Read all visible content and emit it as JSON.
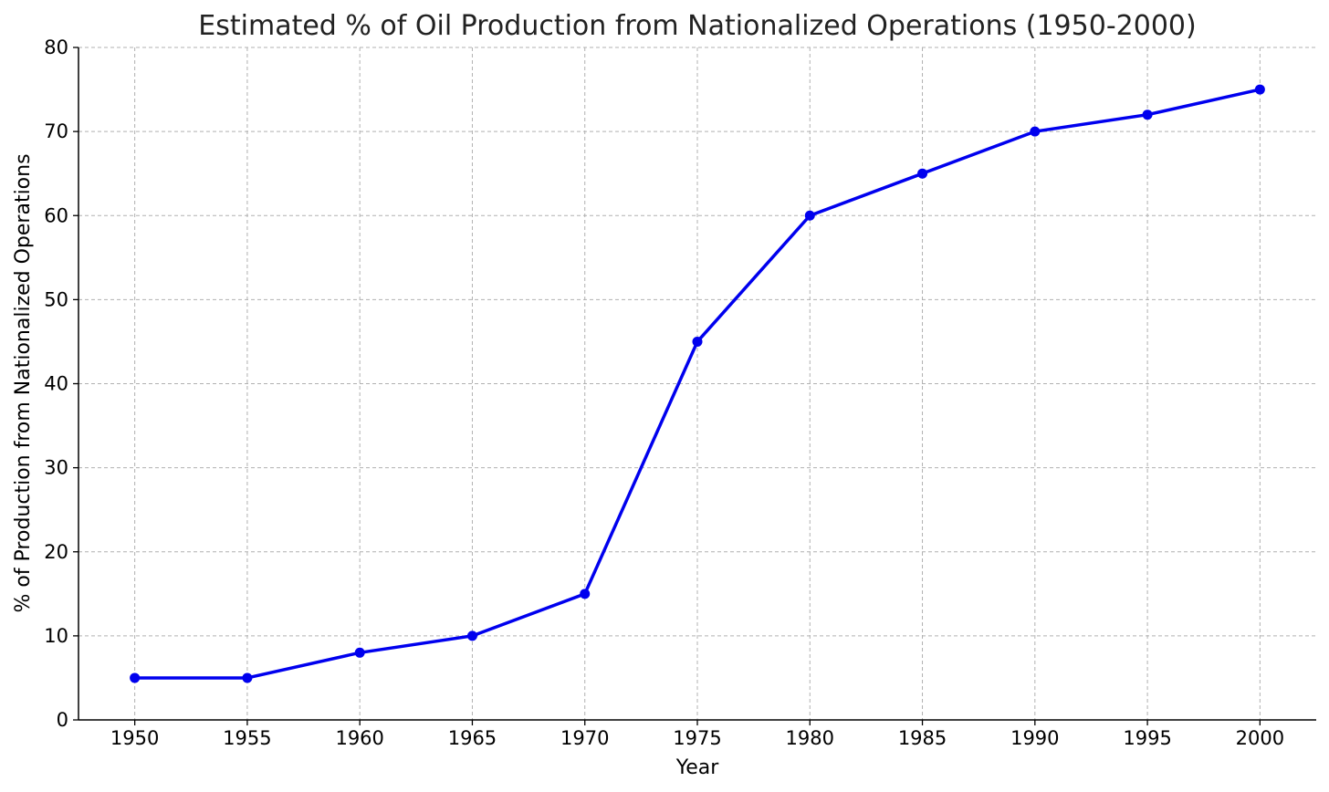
{
  "chart_data": {
    "type": "line",
    "title": "Estimated % of Oil Production from Nationalized Operations (1950-2000)",
    "xlabel": "Year",
    "ylabel": "% of Production from Nationalized Operations",
    "x": [
      1950,
      1955,
      1960,
      1965,
      1970,
      1975,
      1980,
      1985,
      1990,
      1995,
      2000
    ],
    "series": [
      {
        "values": [
          5,
          5,
          8,
          10,
          15,
          45,
          60,
          65,
          70,
          72,
          75
        ],
        "color": "#0000ee",
        "marker": "circle"
      }
    ],
    "xlim": [
      1947.5,
      2002.5
    ],
    "ylim": [
      0,
      80
    ],
    "xticks": [
      1950,
      1955,
      1960,
      1965,
      1970,
      1975,
      1980,
      1985,
      1990,
      1995,
      2000
    ],
    "yticks": [
      0,
      10,
      20,
      30,
      40,
      50,
      60,
      70,
      80
    ],
    "grid": true,
    "legend": "none"
  }
}
